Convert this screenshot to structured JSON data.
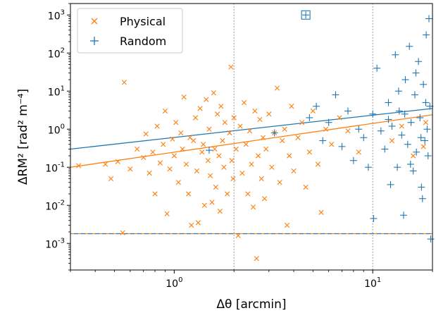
{
  "chart_data": {
    "type": "scatter",
    "title": "",
    "xlabel": "Δθ [arcmin]",
    "ylabel": "ΔRM² [rad² m⁻⁴]",
    "xscale": "log",
    "yscale": "log",
    "xlim": [
      0.3,
      20
    ],
    "ylim": [
      0.0002,
      2000
    ],
    "x_ticks": [
      {
        "value": 1,
        "label": "10^0"
      },
      {
        "value": 10,
        "label": "10^1"
      }
    ],
    "y_ticks": [
      {
        "value": 0.001,
        "label": "10^-3"
      },
      {
        "value": 0.01,
        "label": "10^-2"
      },
      {
        "value": 0.1,
        "label": "10^-1"
      },
      {
        "value": 1,
        "label": "10^0"
      },
      {
        "value": 10,
        "label": "10^1"
      },
      {
        "value": 100,
        "label": "10^2"
      },
      {
        "value": 1000,
        "label": "10^3"
      }
    ],
    "legend_position": "top-left",
    "colors": {
      "physical": "#ff7f0e",
      "random": "#1f77b4"
    },
    "series": [
      {
        "name": "Physical",
        "marker": "x",
        "color": "#ff7f0e",
        "points": [
          [
            0.33,
            0.11
          ],
          [
            0.45,
            0.12
          ],
          [
            0.48,
            0.05
          ],
          [
            0.52,
            0.14
          ],
          [
            0.55,
            0.0019
          ],
          [
            0.56,
            17
          ],
          [
            0.6,
            0.09
          ],
          [
            0.65,
            0.3
          ],
          [
            0.7,
            0.18
          ],
          [
            0.72,
            0.75
          ],
          [
            0.75,
            0.07
          ],
          [
            0.78,
            0.25
          ],
          [
            0.8,
            0.02
          ],
          [
            0.82,
            1.2
          ],
          [
            0.85,
            0.13
          ],
          [
            0.88,
            0.4
          ],
          [
            0.9,
            3
          ],
          [
            0.92,
            0.006
          ],
          [
            0.95,
            0.09
          ],
          [
            0.98,
            0.55
          ],
          [
            1.0,
            0.2
          ],
          [
            1.02,
            1.5
          ],
          [
            1.05,
            0.04
          ],
          [
            1.08,
            0.8
          ],
          [
            1.1,
            0.3
          ],
          [
            1.12,
            7
          ],
          [
            1.15,
            0.12
          ],
          [
            1.18,
            0.02
          ],
          [
            1.2,
            0.6
          ],
          [
            1.22,
            0.003
          ],
          [
            1.25,
            0.5
          ],
          [
            1.28,
            2
          ],
          [
            1.3,
            0.08
          ],
          [
            1.32,
            0.0035
          ],
          [
            1.35,
            3.5
          ],
          [
            1.38,
            0.25
          ],
          [
            1.4,
            0.4
          ],
          [
            1.42,
            0.01
          ],
          [
            1.45,
            6
          ],
          [
            1.48,
            0.15
          ],
          [
            1.5,
            1
          ],
          [
            1.52,
            0.06
          ],
          [
            1.55,
            0.012
          ],
          [
            1.58,
            9
          ],
          [
            1.6,
            0.3
          ],
          [
            1.62,
            0.03
          ],
          [
            1.65,
            2.5
          ],
          [
            1.68,
            0.2
          ],
          [
            1.7,
            0.007
          ],
          [
            1.72,
            4
          ],
          [
            1.75,
            0.5
          ],
          [
            1.78,
            0.1
          ],
          [
            1.8,
            1.5
          ],
          [
            1.85,
            0.02
          ],
          [
            1.9,
            0.8
          ],
          [
            1.93,
            43
          ],
          [
            1.95,
            0.15
          ],
          [
            1.98,
            0.05
          ],
          [
            2.0,
            2
          ],
          [
            2.05,
            0.3
          ],
          [
            2.1,
            0.0016
          ],
          [
            2.15,
            1.2
          ],
          [
            2.2,
            0.07
          ],
          [
            2.25,
            5
          ],
          [
            2.3,
            0.4
          ],
          [
            2.35,
            0.02
          ],
          [
            2.4,
            0.9
          ],
          [
            2.45,
            0.12
          ],
          [
            2.5,
            0.009
          ],
          [
            2.55,
            3
          ],
          [
            2.6,
            0.0004
          ],
          [
            2.65,
            0.2
          ],
          [
            2.7,
            1.8
          ],
          [
            2.75,
            0.05
          ],
          [
            2.8,
            0.6
          ],
          [
            2.85,
            0.015
          ],
          [
            2.9,
            0.3
          ],
          [
            3.0,
            2.5
          ],
          [
            3.1,
            0.1
          ],
          [
            3.2,
            0.8
          ],
          [
            3.3,
            12
          ],
          [
            3.4,
            0.04
          ],
          [
            3.5,
            0.5
          ],
          [
            3.6,
            1
          ],
          [
            3.7,
            0.003
          ],
          [
            3.8,
            0.2
          ],
          [
            3.9,
            4
          ],
          [
            4.0,
            0.08
          ],
          [
            4.2,
            0.6
          ],
          [
            4.4,
            1.5
          ],
          [
            4.6,
            0.03
          ],
          [
            4.8,
            0.25
          ],
          [
            5.0,
            3
          ],
          [
            5.3,
            0.12
          ],
          [
            5.5,
            0.0065
          ],
          [
            5.8,
            1
          ],
          [
            6.2,
            0.4
          ],
          [
            6.8,
            2
          ],
          [
            7.5,
            0.9
          ],
          [
            8.5,
            0.25
          ],
          [
            12.5,
            0.5
          ],
          [
            14,
            1.2
          ],
          [
            16,
            0.2
          ],
          [
            18,
            0.35
          ],
          [
            18.5,
            1.5
          ]
        ]
      },
      {
        "name": "Random",
        "marker": "+",
        "color": "#1f77b4",
        "points": [
          [
            1.5,
            0.28
          ],
          [
            3.2,
            0.8
          ],
          [
            4.6,
            1000
          ],
          [
            4.8,
            2
          ],
          [
            5.2,
            4
          ],
          [
            5.6,
            0.5
          ],
          [
            6.0,
            1.5
          ],
          [
            6.5,
            8
          ],
          [
            7.0,
            0.35
          ],
          [
            7.5,
            3
          ],
          [
            8.0,
            0.15
          ],
          [
            8.5,
            1
          ],
          [
            9.0,
            0.6
          ],
          [
            9.5,
            0.1
          ],
          [
            10.0,
            2.5
          ],
          [
            10.1,
            0.0045
          ],
          [
            10.5,
            40
          ],
          [
            11.0,
            0.9
          ],
          [
            11.5,
            0.3
          ],
          [
            12.0,
            5
          ],
          [
            12.3,
            0.035
          ],
          [
            12.5,
            1.2
          ],
          [
            13.0,
            90
          ],
          [
            13.3,
            0.1
          ],
          [
            13.6,
            3
          ],
          [
            14.0,
            0.7
          ],
          [
            14.3,
            0.0055
          ],
          [
            14.6,
            20
          ],
          [
            15.0,
            0.4
          ],
          [
            15.3,
            150
          ],
          [
            15.6,
            1.5
          ],
          [
            16.0,
            0.08
          ],
          [
            16.3,
            8
          ],
          [
            16.6,
            0.25
          ],
          [
            17.0,
            60
          ],
          [
            17.3,
            2
          ],
          [
            17.6,
            0.03
          ],
          [
            17.8,
            0.015
          ],
          [
            18.0,
            15
          ],
          [
            18.3,
            0.5
          ],
          [
            18.6,
            300
          ],
          [
            18.8,
            1
          ],
          [
            19.0,
            0.2
          ],
          [
            19.2,
            800
          ],
          [
            19.4,
            4
          ],
          [
            19.6,
            0.0013
          ],
          [
            12.0,
            1.8
          ],
          [
            13.5,
            10
          ],
          [
            14.5,
            2.5
          ],
          [
            15.5,
            0.12
          ],
          [
            16.5,
            30
          ],
          [
            17.5,
            0.6
          ],
          [
            18.5,
            5
          ]
        ]
      }
    ],
    "fit_lines": [
      {
        "series": "Random",
        "x": [
          0.3,
          20
        ],
        "y": [
          0.3,
          3.5
        ]
      },
      {
        "series": "Physical",
        "x": [
          0.3,
          20
        ],
        "y": [
          0.1,
          2.4
        ]
      }
    ],
    "horizontal_lines": [
      {
        "series": "Physical",
        "y": 0.0018,
        "style": "dashed"
      },
      {
        "series": "Random",
        "y": 0.0018,
        "style": "dashed"
      }
    ],
    "vertical_lines": [
      {
        "x": 2,
        "style": "dotted",
        "color": "#808080"
      },
      {
        "x": 10,
        "style": "dotted",
        "color": "#808080"
      }
    ],
    "legend": [
      {
        "label": "Physical",
        "marker": "x",
        "color": "#ff7f0e"
      },
      {
        "label": "Random",
        "marker": "+",
        "color": "#1f77b4"
      }
    ]
  }
}
